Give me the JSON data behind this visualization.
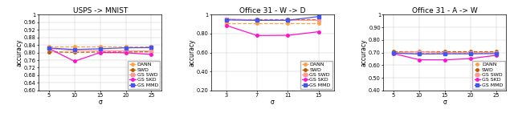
{
  "titles": [
    "USPS -> MNIST",
    "Office 31 - W -> D",
    "Office 31 - A -> W"
  ],
  "colors": {
    "DANN": "#FFA040",
    "SWD": "#B85C00",
    "GS SWD": "#FF9999",
    "GS SKD": "#FF10CC",
    "GS MMD": "#4455EE"
  },
  "linestyles": {
    "DANN": "--",
    "SWD": "--",
    "GS SWD": "-",
    "GS SKD": "-",
    "GS MMD": "-"
  },
  "markers": {
    "DANN": "o",
    "SWD": "o",
    "GS SWD": "s",
    "GS SKD": "o",
    "GS MMD": "s"
  },
  "plot0": {
    "xlim": [
      3,
      27
    ],
    "ylim": [
      0.6,
      1.0
    ],
    "xticks": [
      5,
      10,
      15,
      20,
      25
    ],
    "yticks": [
      0.6,
      0.64,
      0.68,
      0.72,
      0.76,
      0.8,
      0.84,
      0.88,
      0.92,
      0.96,
      1.0
    ],
    "series": {
      "DANN": {
        "x": [
          5,
          10,
          15,
          20,
          25
        ],
        "y": [
          0.831,
          0.831,
          0.831,
          0.831,
          0.831
        ]
      },
      "SWD": {
        "x": [
          5,
          10,
          15,
          20,
          25
        ],
        "y": [
          0.804,
          0.801,
          0.803,
          0.803,
          0.804
        ]
      },
      "GS SWD": {
        "x": [
          5,
          10,
          15,
          20,
          25
        ],
        "y": [
          0.822,
          0.81,
          0.811,
          0.809,
          0.808
        ]
      },
      "GS SKD": {
        "x": [
          5,
          10,
          15,
          20,
          25
        ],
        "y": [
          0.822,
          0.754,
          0.8,
          0.799,
          0.79
        ]
      },
      "GS MMD": {
        "x": [
          5,
          10,
          15,
          20,
          25
        ],
        "y": [
          0.824,
          0.816,
          0.82,
          0.825,
          0.826
        ]
      }
    }
  },
  "plot1": {
    "xlim": [
      1,
      17
    ],
    "ylim": [
      0.2,
      1.0
    ],
    "xticks": [
      3,
      7,
      11,
      15
    ],
    "yticks": [
      0.2,
      0.4,
      0.6,
      0.8,
      1.0
    ],
    "series": {
      "DANN": {
        "x": [
          3,
          7,
          11,
          15
        ],
        "y": [
          0.91,
          0.91,
          0.91,
          0.91
        ]
      },
      "SWD": {
        "x": [
          3,
          7,
          11,
          15
        ],
        "y": [
          0.95,
          0.95,
          0.95,
          0.95
        ]
      },
      "GS SWD": {
        "x": [
          3,
          7,
          11,
          15
        ],
        "y": [
          0.956,
          0.941,
          0.941,
          0.941
        ]
      },
      "GS SKD": {
        "x": [
          3,
          7,
          11,
          15
        ],
        "y": [
          0.887,
          0.78,
          0.782,
          0.82
        ]
      },
      "GS MMD": {
        "x": [
          3,
          7,
          11,
          15
        ],
        "y": [
          0.945,
          0.94,
          0.941,
          0.98
        ]
      }
    }
  },
  "plot2": {
    "xlim": [
      3,
      27
    ],
    "ylim": [
      0.4,
      1.0
    ],
    "xticks": [
      5,
      10,
      15,
      20,
      25
    ],
    "yticks": [
      0.4,
      0.5,
      0.6,
      0.7,
      0.8,
      0.9,
      1.0
    ],
    "series": {
      "DANN": {
        "x": [
          5,
          10,
          15,
          20,
          25
        ],
        "y": [
          0.7,
          0.7,
          0.7,
          0.7,
          0.7
        ]
      },
      "SWD": {
        "x": [
          5,
          10,
          15,
          20,
          25
        ],
        "y": [
          0.707,
          0.707,
          0.707,
          0.707,
          0.707
        ]
      },
      "GS SWD": {
        "x": [
          5,
          10,
          15,
          20,
          25
        ],
        "y": [
          0.7,
          0.706,
          0.7,
          0.7,
          0.7
        ]
      },
      "GS SKD": {
        "x": [
          5,
          10,
          15,
          20,
          25
        ],
        "y": [
          0.692,
          0.643,
          0.642,
          0.652,
          0.678
        ]
      },
      "GS MMD": {
        "x": [
          5,
          10,
          15,
          20,
          25
        ],
        "y": [
          0.696,
          0.688,
          0.69,
          0.69,
          0.692
        ]
      }
    }
  },
  "title_fontsize": 6.5,
  "label_fontsize": 5.5,
  "tick_fontsize": 4.8,
  "legend_fontsize": 4.5,
  "marker_size": 2.5,
  "line_width": 0.9
}
